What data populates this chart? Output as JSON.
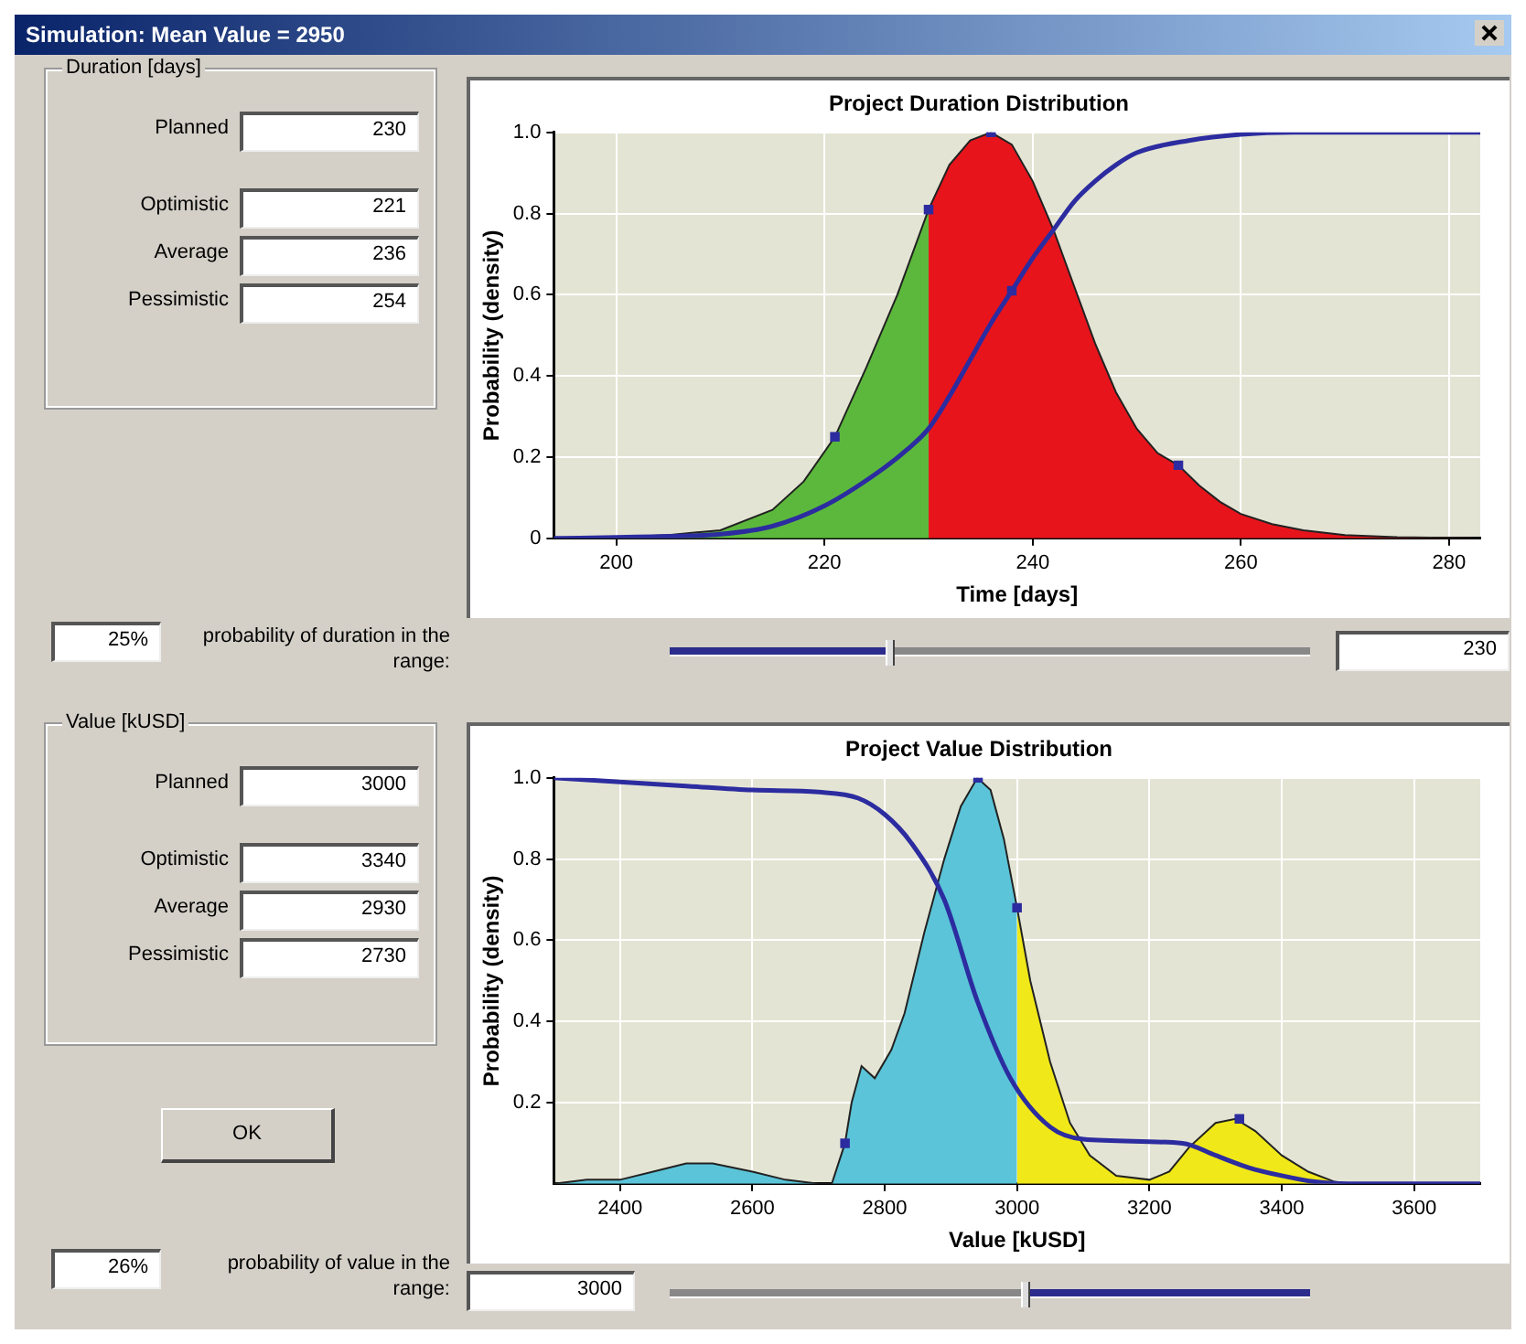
{
  "chart_data": [
    {
      "type": "other",
      "title": "Simulation: Mean Value = 2950",
      "annotations": [
        "Duration [days]",
        "Planned",
        "230",
        "Optimistic",
        "221",
        "Average",
        "236",
        "Pessimistic",
        "254",
        "25%",
        "probability of duration in the range:",
        "230"
      ]
    },
    {
      "type": "area",
      "title": "Project Duration Distribution",
      "xlabel": "Time [days]",
      "ylabel": "Probability (density)",
      "xlim": [
        194,
        283
      ],
      "xticks": [
        200,
        220,
        240,
        260,
        280
      ],
      "ylim": [
        0,
        1
      ],
      "yticks": [
        0,
        0.2,
        0.4,
        0.6,
        0.8,
        {
          "value": 1,
          "label": "1.0"
        }
      ],
      "grid": true,
      "legend": false,
      "series": [
        {
          "type": "area",
          "color": "#5cb83c",
          "x": [
            194,
            200,
            205,
            210,
            215,
            218,
            221,
            224,
            227,
            230
          ],
          "values": [
            0,
            0.003,
            0.008,
            0.02,
            0.07,
            0.14,
            0.25,
            0.42,
            0.6,
            0.81
          ]
        },
        {
          "type": "area",
          "color": "#e8141c",
          "x": [
            230,
            232,
            234,
            236,
            238,
            240,
            242,
            244,
            246,
            248,
            250,
            252,
            254,
            256,
            258,
            260,
            263,
            266,
            270,
            275,
            283
          ],
          "values": [
            0.81,
            0.92,
            0.98,
            1,
            0.97,
            0.88,
            0.76,
            0.62,
            0.48,
            0.36,
            0.27,
            0.21,
            0.18,
            0.13,
            0.09,
            0.06,
            0.035,
            0.02,
            0.008,
            0.003,
            0
          ]
        },
        {
          "type": "line",
          "color": "#2c2ca0",
          "x": [
            194,
            205,
            210,
            215,
            220,
            225,
            228,
            230,
            232,
            234,
            236,
            238,
            240,
            242,
            244,
            246,
            248,
            250,
            255,
            260,
            265,
            283
          ],
          "values": [
            0,
            0.005,
            0.01,
            0.03,
            0.08,
            0.16,
            0.22,
            0.27,
            0.35,
            0.44,
            0.53,
            0.61,
            0.69,
            0.76,
            0.83,
            0.88,
            0.92,
            0.95,
            0.98,
            0.995,
            1,
            1
          ]
        },
        {
          "type": "scatter",
          "color": "#2c2ca0",
          "marker": "square",
          "x": [
            221,
            230,
            236,
            238,
            254
          ],
          "values": [
            0.25,
            0.81,
            1,
            0.61,
            0.18
          ]
        }
      ]
    },
    {
      "type": "other",
      "annotations": [
        "Value [kUSD]",
        "Planned",
        "3000",
        "Optimistic",
        "3340",
        "Average",
        "2930",
        "Pessimistic",
        "2730",
        "OK",
        "26%",
        "probability of value in the range:",
        "3000"
      ]
    },
    {
      "type": "area",
      "title": "Project Value Distribution",
      "xlabel": "Value [kUSD]",
      "ylabel": "Probability (density)",
      "xlim": [
        2300,
        3700
      ],
      "xticks": [
        2400,
        2600,
        2800,
        3000,
        3200,
        3400,
        3600
      ],
      "ylim": [
        0,
        1
      ],
      "yticks": [
        0.2,
        0.4,
        0.6,
        0.8,
        {
          "value": 1,
          "label": "1.0"
        }
      ],
      "grid": true,
      "legend": false,
      "series": [
        {
          "type": "area",
          "color": "#5bc4d8",
          "x": [
            2300,
            2350,
            2400,
            2450,
            2500,
            2540,
            2600,
            2650,
            2700,
            2720,
            2740,
            2750,
            2765,
            2785,
            2810,
            2830,
            2860,
            2890,
            2915,
            2940,
            2960,
            2980,
            3000
          ],
          "values": [
            0,
            0.01,
            0.01,
            0.03,
            0.05,
            0.05,
            0.03,
            0.01,
            0,
            0,
            0.1,
            0.2,
            0.29,
            0.26,
            0.33,
            0.42,
            0.62,
            0.8,
            0.93,
            1,
            0.97,
            0.85,
            0.68
          ]
        },
        {
          "type": "area",
          "color": "#f0e818",
          "x": [
            3000,
            3020,
            3050,
            3080,
            3110,
            3150,
            3200,
            3230,
            3260,
            3300,
            3330,
            3360,
            3400,
            3440,
            3480,
            3500,
            3700
          ],
          "values": [
            0.68,
            0.5,
            0.3,
            0.15,
            0.07,
            0.02,
            0.01,
            0.03,
            0.09,
            0.15,
            0.16,
            0.13,
            0.07,
            0.03,
            0.005,
            0,
            0
          ]
        },
        {
          "type": "line",
          "color": "#2c2ca0",
          "x": [
            2300,
            2500,
            2600,
            2700,
            2760,
            2800,
            2840,
            2890,
            2940,
            2990,
            3050,
            3100,
            3250,
            3300,
            3350,
            3400,
            3450,
            3500,
            3700
          ],
          "values": [
            1,
            0.98,
            0.97,
            0.965,
            0.95,
            0.91,
            0.84,
            0.7,
            0.45,
            0.26,
            0.14,
            0.11,
            0.1,
            0.07,
            0.04,
            0.02,
            0.005,
            0,
            0
          ]
        },
        {
          "type": "scatter",
          "color": "#2c2ca0",
          "marker": "square",
          "x": [
            2740,
            2941,
            3000,
            3336
          ],
          "values": [
            0.1,
            1,
            0.68,
            0.16
          ]
        }
      ]
    }
  ]
}
